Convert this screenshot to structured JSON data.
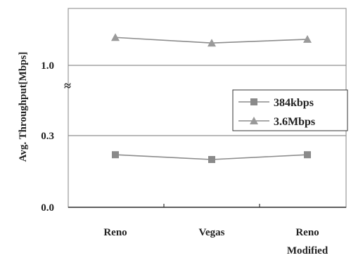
{
  "chart_data": {
    "type": "line",
    "title": "",
    "xlabel": "",
    "ylabel": "Avg. Throughput[Mbps]",
    "categories": [
      "Reno",
      "Vegas",
      "Reno Modified"
    ],
    "y_ticks": [
      "0.0",
      "0.3",
      "1.0"
    ],
    "y_break": true,
    "break_symbol": "≈",
    "grid": "horizontal",
    "legend_position": "right",
    "series": [
      {
        "name": "384kbps",
        "marker": "square",
        "color": "#8a8a8a",
        "values": [
          0.22,
          0.2,
          0.22
        ]
      },
      {
        "name": "3.6Mbps",
        "marker": "triangle",
        "color": "#9a9a9a",
        "values": [
          1.15,
          1.12,
          1.14
        ]
      }
    ]
  }
}
